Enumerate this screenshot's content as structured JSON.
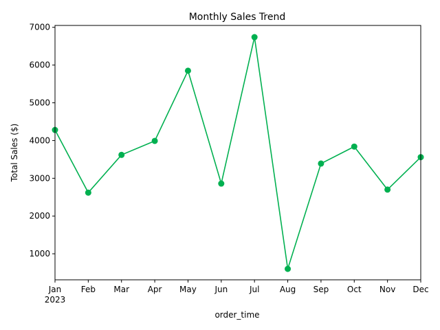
{
  "chart_data": {
    "type": "line",
    "title": "Monthly Sales Trend",
    "xlabel": "order_time",
    "ylabel": "Total Sales ($)",
    "categories": [
      "Jan",
      "Feb",
      "Mar",
      "Apr",
      "May",
      "Jun",
      "Jul",
      "Aug",
      "Sep",
      "Oct",
      "Nov",
      "Dec"
    ],
    "year_label": "2023",
    "values": [
      4280,
      2620,
      3620,
      3990,
      5850,
      2860,
      6740,
      600,
      3390,
      3840,
      2700,
      3560
    ],
    "yticks": [
      1000,
      2000,
      3000,
      4000,
      5000,
      6000,
      7000
    ],
    "ylim": [
      310,
      7050
    ],
    "grid": false,
    "legend": false,
    "line_color": "#00b050"
  }
}
